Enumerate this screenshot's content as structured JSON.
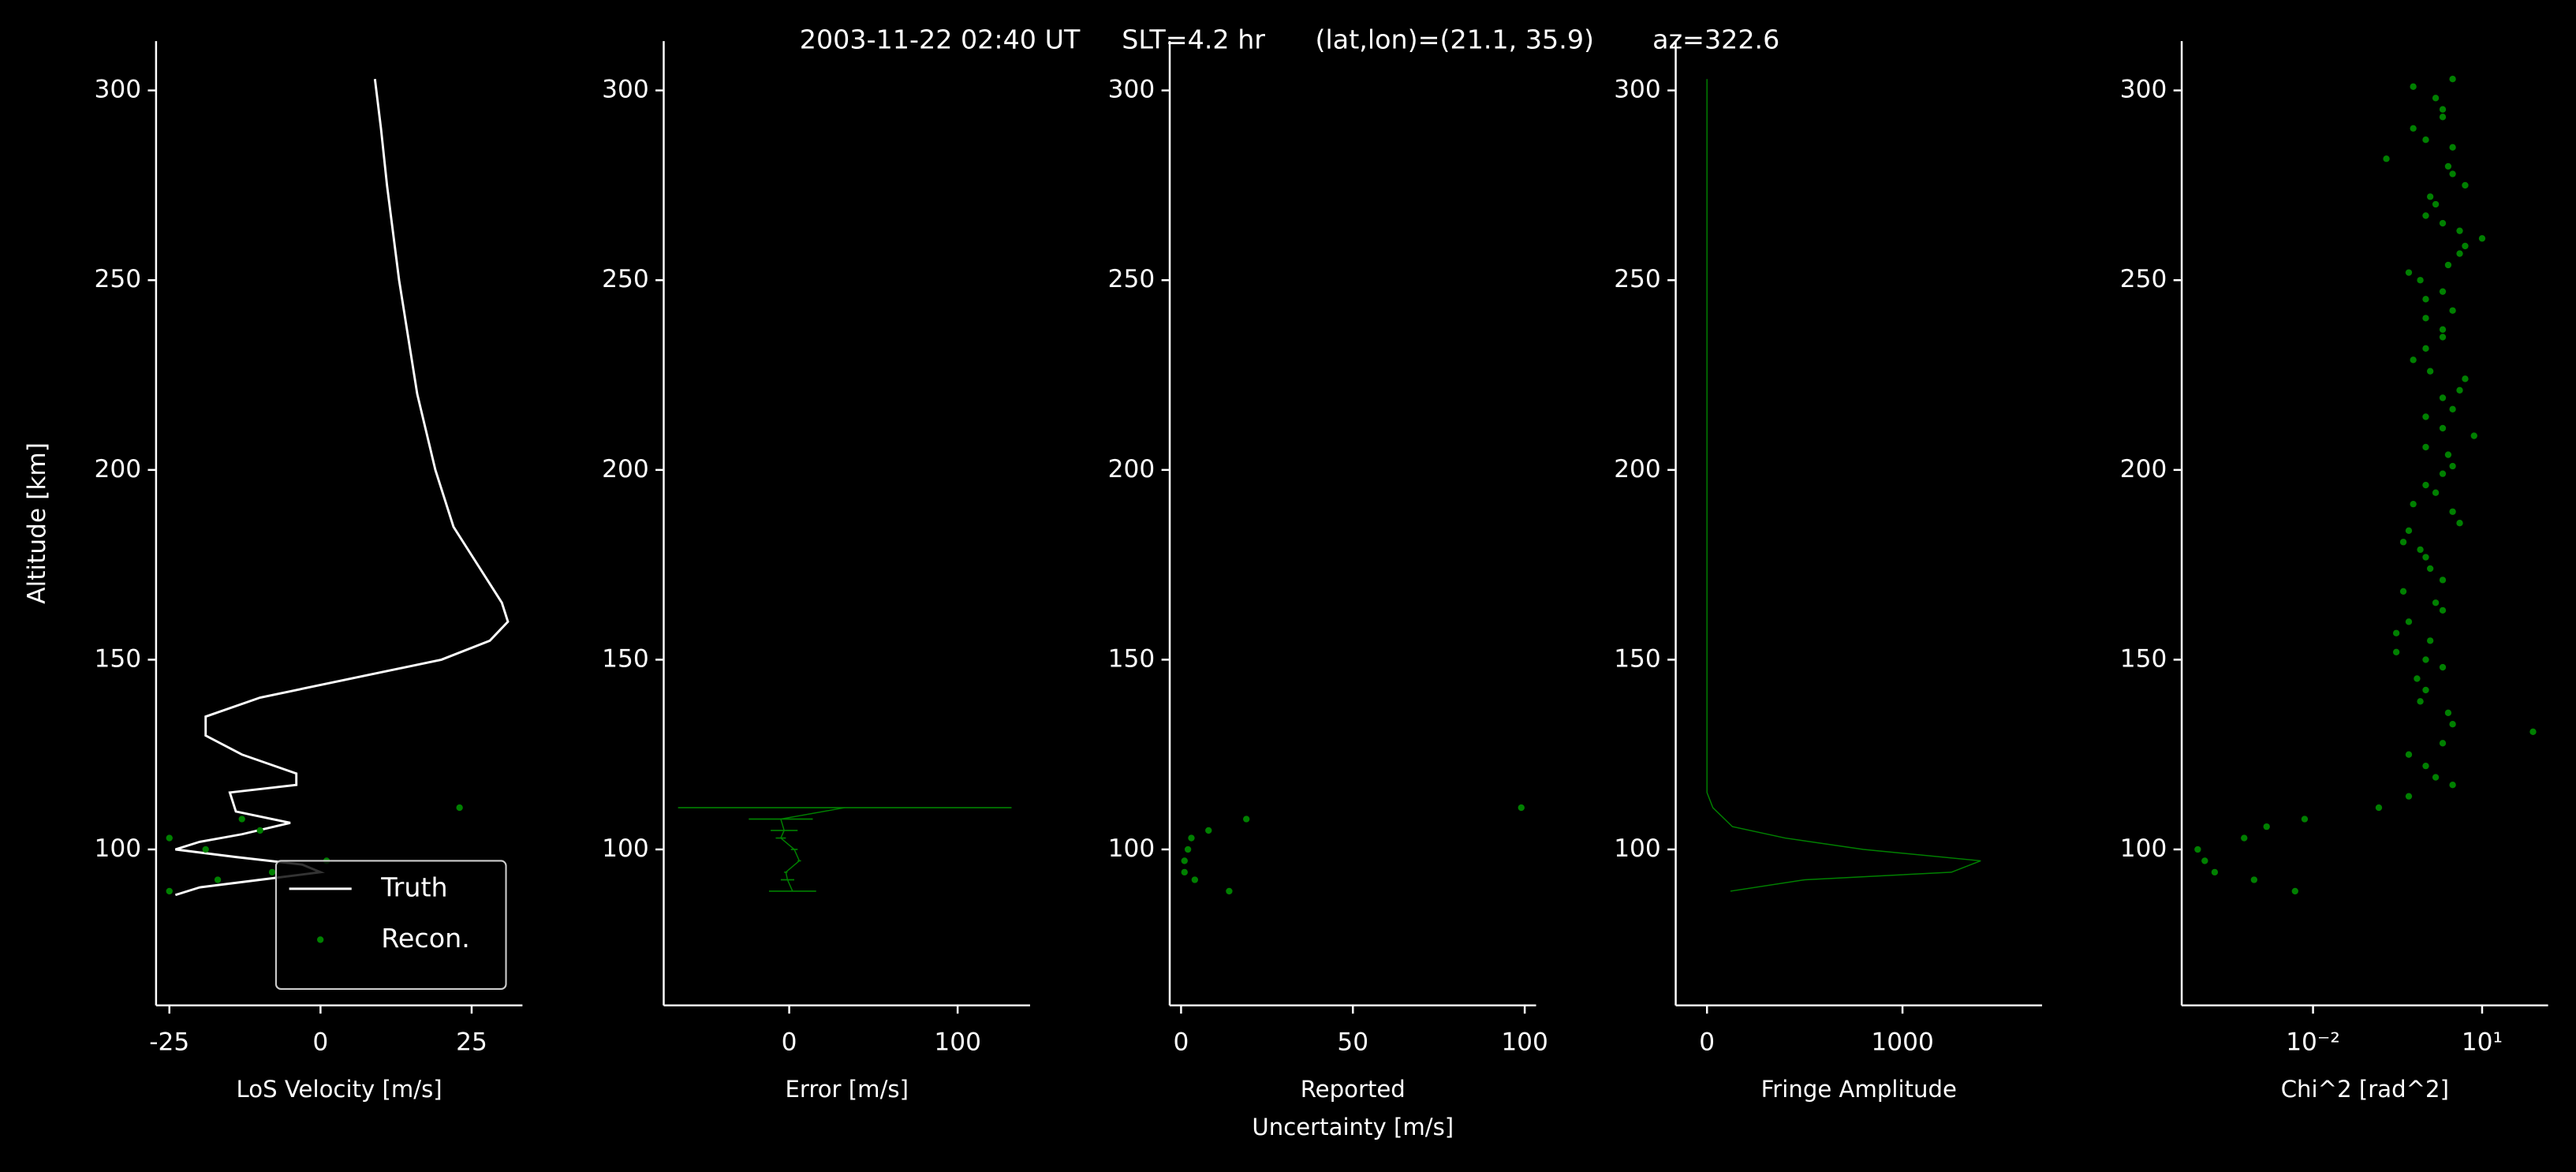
{
  "title": "2003-11-22 02:40 UT     SLT=4.2 hr      (lat,lon)=(21.1, 35.9)       az=322.6",
  "chart_data": [
    {
      "type": "line",
      "xlabel": "LoS Velocity [m/s]",
      "ylabel": "Altitude [km]",
      "xlim": [
        -27.2,
        33.4
      ],
      "xticks": [
        -25,
        0,
        25
      ],
      "ylim": [
        58.9,
        313
      ],
      "yticks": [
        100,
        150,
        200,
        250,
        300
      ],
      "legend": "lower right",
      "series": [
        {
          "name": "Truth",
          "kind": "line",
          "color": "#ffffff",
          "x": [
            9,
            10,
            11,
            13,
            16,
            19,
            22,
            26,
            30,
            31,
            28,
            20,
            5,
            -10,
            -19,
            -19,
            -13,
            -4,
            -4,
            -15,
            -14,
            -5,
            -13,
            -20,
            -24,
            -14,
            -3,
            0,
            -10,
            -20,
            -24
          ],
          "y": [
            303,
            290,
            275,
            250,
            220,
            200,
            185,
            175,
            165,
            160,
            155,
            150,
            145,
            140,
            135,
            130,
            125,
            120,
            117,
            115,
            110,
            107,
            104,
            102,
            100,
            98,
            96,
            94,
            92,
            90,
            88
          ]
        },
        {
          "name": "Recon.",
          "kind": "scatter",
          "color": "#008000",
          "x": [
            23,
            -13,
            -10,
            -25,
            -19,
            1,
            -8,
            -17,
            -25
          ],
          "y": [
            111,
            108,
            105,
            103,
            100,
            97,
            94,
            92,
            89
          ]
        }
      ]
    },
    {
      "type": "errorbar",
      "xlabel": "Error [m/s]",
      "xlim": [
        -74.5,
        143
      ],
      "xticks": [
        0,
        100
      ],
      "ylim": [
        58.9,
        313
      ],
      "yticks": [
        100,
        150,
        200,
        250,
        300
      ],
      "series": [
        {
          "kind": "errorbar",
          "color": "#008000",
          "x": [
            33,
            -5,
            -3,
            -5,
            3,
            6,
            -2,
            -1,
            2
          ],
          "xerr": [
            99,
            19,
            8,
            3,
            2,
            1,
            1,
            4,
            14
          ],
          "y": [
            111,
            108,
            105,
            103,
            100,
            97,
            94,
            92,
            89
          ]
        }
      ]
    },
    {
      "type": "scatter",
      "xlabel": "Reported\nUncertainty [m/s]",
      "xlim": [
        -3.3,
        103.3
      ],
      "xticks": [
        0,
        50,
        100
      ],
      "ylim": [
        58.9,
        313
      ],
      "yticks": [
        100,
        150,
        200,
        250,
        300
      ],
      "series": [
        {
          "kind": "scatter",
          "color": "#008000",
          "x": [
            99,
            19,
            8,
            3,
            2,
            1,
            1,
            4,
            14
          ],
          "y": [
            111,
            108,
            105,
            103,
            100,
            97,
            94,
            92,
            89
          ]
        }
      ]
    },
    {
      "type": "line",
      "xlabel": "Fringe Amplitude",
      "xlim": [
        -160,
        1714
      ],
      "xticks": [
        0,
        1000
      ],
      "ylim": [
        58.9,
        313
      ],
      "yticks": [
        100,
        150,
        200,
        250,
        300
      ],
      "series": [
        {
          "kind": "line",
          "color": "#008000",
          "x": [
            0,
            0,
            0,
            30,
            130,
            400,
            800,
            1400,
            1250,
            500,
            120
          ],
          "y": [
            303,
            200,
            115,
            111,
            106,
            103,
            100,
            97,
            94,
            92,
            89
          ]
        }
      ]
    },
    {
      "type": "scatter",
      "xlabel": "Chi^2 [rad^2]",
      "xscale": "log",
      "xlim": [
        4.68e-05,
        148
      ],
      "xticks": [
        {
          "value": 0.01,
          "label": "10⁻²"
        },
        {
          "value": 10,
          "label": "10¹"
        }
      ],
      "ylim": [
        58.9,
        313
      ],
      "yticks": [
        100,
        150,
        200,
        250,
        300
      ],
      "series": [
        {
          "kind": "scatter",
          "color": "#008000",
          "x": [
            9e-05,
            0.00012,
            0.00018,
            0.0006,
            0.0009,
            0.0015,
            0.0048,
            0.0071,
            0.147,
            80,
            7.2,
            0.5,
            3,
            1.5,
            1,
            0.5,
            2,
            3,
            2.5,
            0.8,
            1,
            0.7,
            2,
            1,
            0.3,
            1.2,
            0.3,
            0.5,
            2,
            1.5,
            0.4,
            2,
            1.2,
            1,
            0.8,
            0.4,
            0.5,
            4,
            3,
            0.6,
            1.5,
            1,
            2,
            3,
            2.5,
            1,
            2,
            1,
            3,
            2,
            4,
            5,
            1.2,
            0.6,
            1,
            2,
            2,
            1,
            3,
            1,
            2,
            0.8,
            0.5,
            2.5,
            4,
            5,
            10,
            4,
            2,
            1,
            1.5,
            1.2,
            5,
            3,
            2.5,
            0.2,
            3,
            1,
            0.6,
            2,
            2,
            1.5,
            0.6,
            3
          ],
          "y": [
            100,
            97,
            94,
            103,
            92,
            106,
            89,
            108,
            111,
            131,
            209,
            114,
            117,
            119,
            122,
            125,
            128,
            133,
            136,
            139,
            142,
            145,
            148,
            150,
            152,
            155,
            157,
            160,
            163,
            165,
            168,
            171,
            174,
            177,
            179,
            181,
            184,
            186,
            189,
            191,
            194,
            196,
            199,
            201,
            204,
            206,
            211,
            214,
            216,
            219,
            221,
            224,
            226,
            229,
            232,
            235,
            237,
            240,
            242,
            245,
            247,
            250,
            252,
            254,
            257,
            259,
            261,
            263,
            265,
            267,
            270,
            272,
            275,
            278,
            280,
            282,
            285,
            287,
            290,
            293,
            295,
            298,
            301,
            303
          ]
        }
      ]
    }
  ]
}
